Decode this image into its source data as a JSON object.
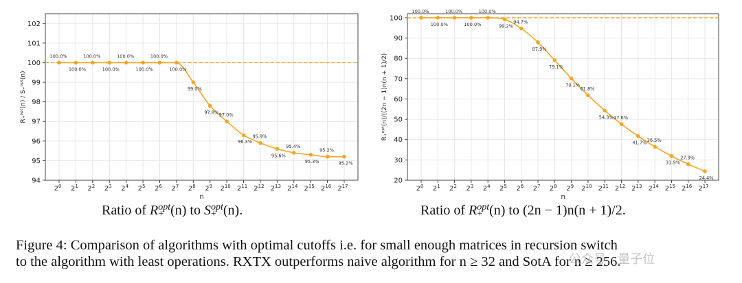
{
  "chart_data": [
    {
      "type": "line",
      "xlabel": "n",
      "ylabel": "R₊ᵒᵖᵗ(n) / S₊ᵒᵖᵗ(n)",
      "x_ticks": [
        "2^0",
        "2^1",
        "2^2",
        "2^3",
        "2^4",
        "2^5",
        "2^6",
        "2^7",
        "2^8",
        "2^9",
        "2^10",
        "2^11",
        "2^12",
        "2^13",
        "2^14",
        "2^15",
        "2^16",
        "2^17"
      ],
      "ylim": [
        94,
        102.5
      ],
      "y_ticks": [
        94,
        95,
        96,
        97,
        98,
        99,
        100,
        101,
        102
      ],
      "reference_line": 100,
      "values": [
        100,
        100,
        100,
        100,
        100,
        100,
        100,
        100,
        99.0,
        97.8,
        97.0,
        96.3,
        95.9,
        95.6,
        95.4,
        95.3,
        95.2,
        95.2
      ],
      "labels": [
        "100.0%",
        "100.0%",
        "100.0%",
        "100.0%",
        "100.0%",
        "100.0%",
        "100.0%",
        "100.0%",
        "99.0%",
        "97.8%",
        "97.0%",
        "96.3%",
        "95.9%",
        "95.6%",
        "95.4%",
        "95.3%",
        "95.2%",
        "95.2%"
      ],
      "label_pos": [
        "up",
        "down",
        "up",
        "down",
        "up",
        "down",
        "up",
        "down",
        "down",
        "down",
        "up",
        "down",
        "up",
        "down",
        "up",
        "down",
        "up",
        "down"
      ],
      "grid": true,
      "color": "#f5a623",
      "ref_color": "#f5a623"
    },
    {
      "type": "line",
      "xlabel": "n",
      "ylabel": "R₊ᵒᵖᵗ(n)/((2n − 1)n(n + 1)/2)",
      "x_ticks": [
        "2^0",
        "2^1",
        "2^2",
        "2^3",
        "2^4",
        "2^5",
        "2^6",
        "2^7",
        "2^8",
        "2^9",
        "2^10",
        "2^11",
        "2^12",
        "2^13",
        "2^14",
        "2^15",
        "2^16",
        "2^17"
      ],
      "ylim": [
        20,
        102
      ],
      "y_ticks": [
        20,
        30,
        40,
        50,
        60,
        70,
        80,
        90,
        100
      ],
      "reference_line": 100,
      "values": [
        100,
        100,
        100,
        100,
        100,
        99.2,
        94.7,
        87.9,
        79.1,
        70.1,
        61.8,
        54.3,
        47.6,
        41.7,
        36.5,
        31.9,
        27.9,
        24.4
      ],
      "labels": [
        "100.0%",
        "100.0%",
        "100.0%",
        "100.0%",
        "100.0%",
        "99.2%",
        "94.7%",
        "87.9%",
        "79.1%",
        "70.1%",
        "61.8%",
        "54.3%",
        "47.6%",
        "41.7%",
        "36.5%",
        "31.9%",
        "27.9%",
        "24.4%"
      ],
      "label_pos": [
        "up",
        "down",
        "up",
        "down",
        "up",
        "down",
        "up",
        "down",
        "down",
        "down",
        "up",
        "down",
        "up",
        "down",
        "up",
        "down",
        "up",
        "down"
      ],
      "grid": true,
      "color": "#f5a623",
      "ref_color": "#f5a623"
    }
  ],
  "captions": {
    "left": {
      "pre": "Ratio of ",
      "r": "R",
      "r_sup": "opt",
      "r_sub": "+",
      "mid": "(n) to ",
      "s": "S",
      "s_sup": "opt",
      "s_sub": "+",
      "post": "(n)."
    },
    "right": {
      "pre": "Ratio of ",
      "r": "R",
      "r_sup": "opt",
      "r_sub": "+",
      "post": "(n) to (2n − 1)n(n + 1)/2."
    }
  },
  "figure_caption": {
    "line1": "Figure 4: Comparison of algorithms with optimal cutoffs i.e. for small enough matrices in recursion switch",
    "line2": "to the algorithm with least operations. RXTX outperforms naive algorithm for n ≥ 32 and SotA for n ≥ 256."
  },
  "watermark": "公众号 · 量子位"
}
